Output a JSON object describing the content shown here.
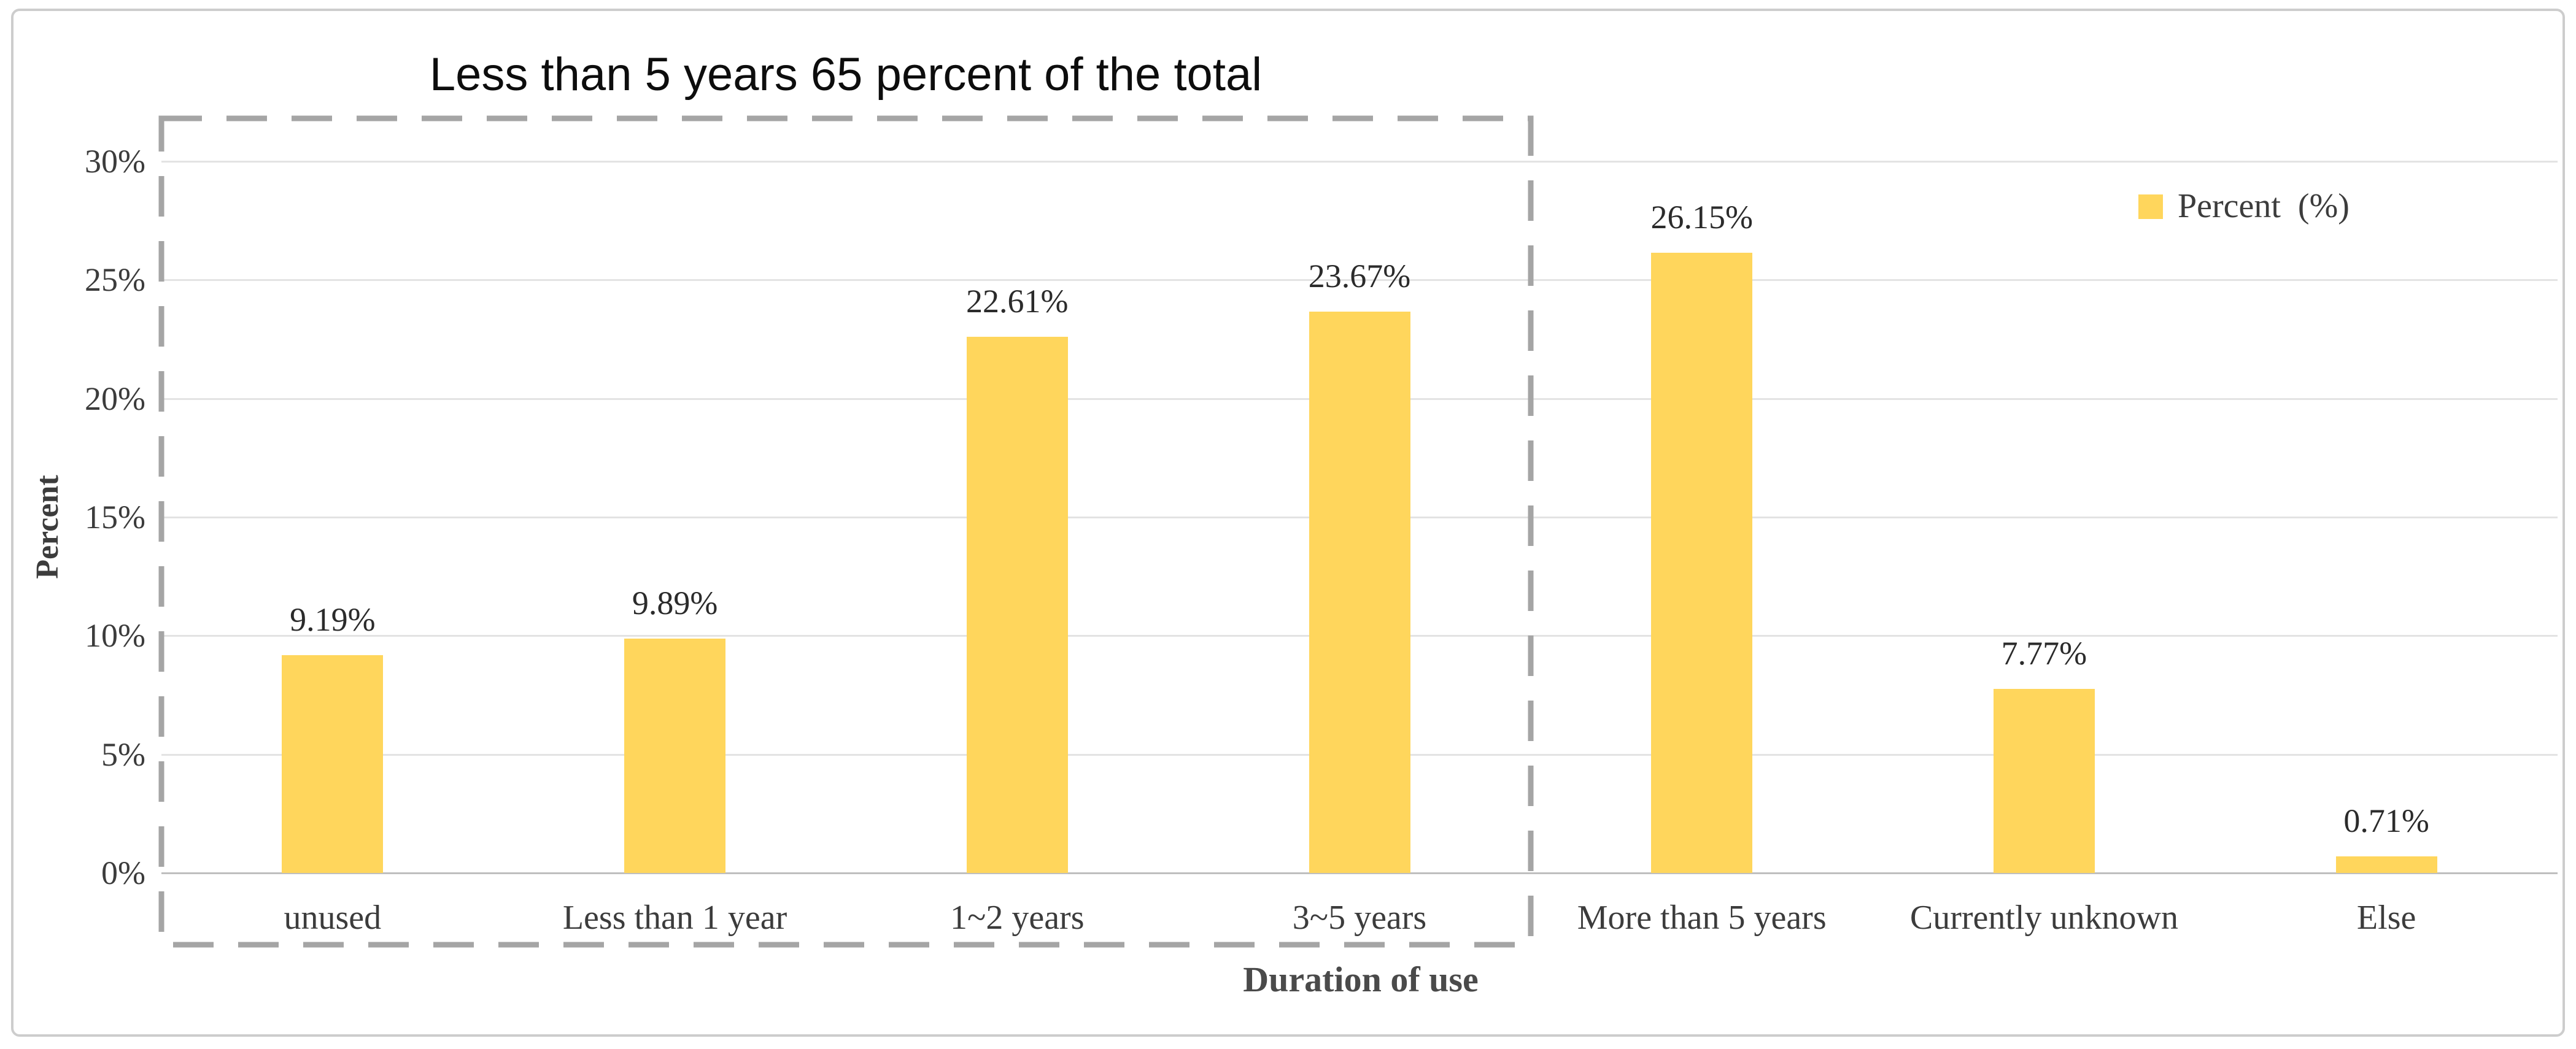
{
  "chart_data": {
    "type": "bar",
    "title": "Less than 5 years 65 percent of the total",
    "xlabel": "Duration of use",
    "ylabel": "Percent",
    "categories": [
      "unused",
      "Less than 1 year",
      "1~2 years",
      "3~5 years",
      "More than 5 years",
      "Currently unknown",
      "Else"
    ],
    "series": [
      {
        "name": "Percent (%)",
        "values": [
          9.19,
          9.89,
          22.61,
          23.67,
          26.15,
          7.77,
          0.71
        ],
        "data_labels": [
          "9.19%",
          "9.89%",
          "22.61%",
          "23.67%",
          "26.15%",
          "7.77%",
          "0.71%"
        ]
      }
    ],
    "y_ticks": [
      {
        "value": 0,
        "label": "0%"
      },
      {
        "value": 5,
        "label": "5%"
      },
      {
        "value": 10,
        "label": "10%"
      },
      {
        "value": 15,
        "label": "15%"
      },
      {
        "value": 20,
        "label": "20%"
      },
      {
        "value": 25,
        "label": "25%"
      },
      {
        "value": 30,
        "label": "30%"
      }
    ],
    "ylim": [
      0,
      30
    ],
    "grid": true,
    "legend": {
      "label": "Percent  (%)",
      "position": "top-right"
    },
    "annotation_box": {
      "style": "dashed",
      "covers_categories": [
        "unused",
        "Less than 1 year",
        "1~2 years",
        "3~5 years"
      ],
      "meaning": "group highlighted by the title"
    },
    "colors": {
      "bar": "#FFD65C",
      "gridline": "#E3E3E3",
      "axis_line": "#BFBFBF",
      "dashed_box": "#A5A5A5",
      "frame_border": "#CDCDCD",
      "title_text": "#0D0D0D",
      "label_text": "#3C3C3C"
    }
  }
}
